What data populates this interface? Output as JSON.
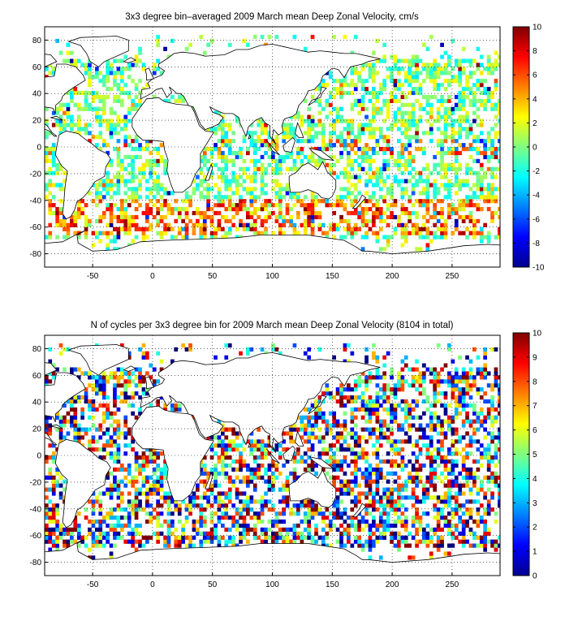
{
  "chart_data": [
    {
      "type": "heatmap",
      "title": "3x3 degree bin–averaged 2009 March mean Deep Zonal Velocity, cm/s",
      "xlabel": "",
      "ylabel": "",
      "xlim": [
        -90,
        290
      ],
      "ylim": [
        -90,
        90
      ],
      "xticks": [
        -50,
        0,
        50,
        100,
        150,
        200,
        250
      ],
      "yticks": [
        80,
        60,
        40,
        20,
        0,
        -20,
        -40,
        -60,
        -80
      ],
      "grid": true,
      "bin_size_deg": 3,
      "colorbar": {
        "min": -10,
        "max": 10,
        "ticks": [
          10,
          8,
          6,
          4,
          2,
          0,
          -2,
          -4,
          -6,
          -8,
          -10
        ],
        "colormap": "jet"
      }
    },
    {
      "type": "heatmap",
      "title": "N of cycles per 3x3 degree bin for 2009 March mean Deep Zonal Velocity (8104 in total)",
      "xlabel": "",
      "ylabel": "",
      "xlim": [
        -90,
        290
      ],
      "ylim": [
        -90,
        90
      ],
      "xticks": [
        -50,
        0,
        50,
        100,
        150,
        200,
        250
      ],
      "yticks": [
        80,
        60,
        40,
        20,
        0,
        -20,
        -40,
        -60,
        -80
      ],
      "grid": true,
      "bin_size_deg": 3,
      "total_cycles": 8104,
      "colorbar": {
        "min": 0,
        "max": 10,
        "ticks": [
          10,
          9,
          8,
          7,
          6,
          5,
          4,
          3,
          2,
          1,
          0
        ],
        "colormap": "jet"
      }
    }
  ]
}
